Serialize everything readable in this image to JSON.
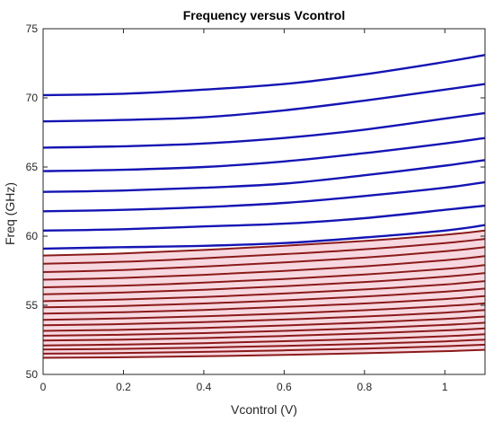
{
  "chart_data": {
    "type": "line",
    "title": "Frequency versus Vcontrol",
    "xlabel": "Vcontrol (V)",
    "ylabel": "Freq (GHz)",
    "xlim": [
      0,
      1.1
    ],
    "ylim": [
      50,
      75
    ],
    "xticks": [
      0,
      0.2,
      0.4,
      0.6,
      0.8,
      1
    ],
    "xtick_labels": [
      "0",
      "0.2",
      "0.4",
      "0.6",
      "0.8",
      "1"
    ],
    "yticks": [
      50,
      55,
      60,
      65,
      70,
      75
    ],
    "ytick_labels": [
      "50",
      "55",
      "60",
      "65",
      "70",
      "75"
    ],
    "grid": false,
    "legend": "none",
    "colors": {
      "upper_band": "#1414b4",
      "lower_band": "#8b1a1a",
      "band_fill": "#f7d8e0",
      "axes": "#262626"
    },
    "x": [
      0,
      0.2,
      0.4,
      0.6,
      0.8,
      1.0,
      1.1
    ],
    "upper_series": [
      {
        "values": [
          70.2,
          70.3,
          70.6,
          71.0,
          71.7,
          72.6,
          73.1
        ]
      },
      {
        "values": [
          68.3,
          68.4,
          68.6,
          69.1,
          69.8,
          70.6,
          71.0
        ]
      },
      {
        "values": [
          66.4,
          66.5,
          66.7,
          67.1,
          67.7,
          68.5,
          68.9
        ]
      },
      {
        "values": [
          64.7,
          64.8,
          65.0,
          65.4,
          66.0,
          66.7,
          67.1
        ]
      },
      {
        "values": [
          63.2,
          63.3,
          63.5,
          63.8,
          64.4,
          65.1,
          65.5
        ]
      },
      {
        "values": [
          61.8,
          61.9,
          62.1,
          62.4,
          62.9,
          63.5,
          63.9
        ]
      },
      {
        "values": [
          60.4,
          60.5,
          60.7,
          60.9,
          61.3,
          61.9,
          62.2
        ]
      },
      {
        "values": [
          59.1,
          59.2,
          59.3,
          59.5,
          59.9,
          60.4,
          60.8
        ]
      }
    ],
    "lower_series": [
      {
        "values": [
          58.6,
          58.75,
          59.0,
          59.3,
          59.65,
          60.1,
          60.4
        ]
      },
      {
        "values": [
          58.0,
          58.15,
          58.4,
          58.7,
          59.05,
          59.5,
          59.8
        ]
      },
      {
        "values": [
          57.4,
          57.55,
          57.8,
          58.1,
          58.45,
          58.9,
          59.2
        ]
      },
      {
        "values": [
          56.85,
          56.98,
          57.2,
          57.48,
          57.82,
          58.25,
          58.55
        ]
      },
      {
        "values": [
          56.3,
          56.42,
          56.64,
          56.9,
          57.22,
          57.63,
          57.9
        ]
      },
      {
        "values": [
          55.8,
          55.92,
          56.12,
          56.38,
          56.68,
          57.07,
          57.33
        ]
      },
      {
        "values": [
          55.3,
          55.42,
          55.6,
          55.85,
          56.14,
          56.5,
          56.75
        ]
      },
      {
        "values": [
          54.85,
          54.95,
          55.13,
          55.36,
          55.63,
          55.98,
          56.21
        ]
      },
      {
        "values": [
          54.4,
          54.5,
          54.66,
          54.88,
          55.13,
          55.45,
          55.67
        ]
      },
      {
        "values": [
          53.95,
          54.05,
          54.2,
          54.4,
          54.64,
          54.94,
          55.14
        ]
      },
      {
        "values": [
          53.55,
          53.64,
          53.78,
          53.97,
          54.19,
          54.47,
          54.66
        ]
      },
      {
        "values": [
          53.15,
          53.23,
          53.36,
          53.54,
          53.75,
          54.01,
          54.19
        ]
      },
      {
        "values": [
          52.8,
          52.87,
          52.99,
          53.15,
          53.34,
          53.58,
          53.74
        ]
      },
      {
        "values": [
          52.45,
          52.52,
          52.63,
          52.78,
          52.96,
          53.18,
          53.33
        ]
      },
      {
        "values": [
          52.1,
          52.16,
          52.26,
          52.4,
          52.56,
          52.76,
          52.9
        ]
      },
      {
        "values": [
          51.8,
          51.85,
          51.94,
          52.06,
          52.21,
          52.39,
          52.52
        ]
      },
      {
        "values": [
          51.5,
          51.55,
          51.63,
          51.74,
          51.87,
          52.04,
          52.15
        ]
      },
      {
        "values": [
          51.2,
          51.24,
          51.31,
          51.41,
          51.53,
          51.68,
          51.78
        ]
      }
    ]
  }
}
